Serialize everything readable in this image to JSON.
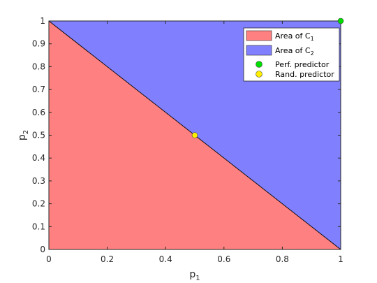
{
  "chart_data": {
    "type": "area",
    "xlabel": "p",
    "xlabel_sub": "1",
    "ylabel": "p",
    "ylabel_sub": "2",
    "xlim": [
      0,
      1
    ],
    "ylim": [
      0,
      1
    ],
    "x_ticks": [
      0,
      0.2,
      0.4,
      0.6,
      0.8,
      1
    ],
    "x_tick_labels": [
      "0",
      "0.2",
      "0.4",
      "0.6",
      "0.8",
      "1"
    ],
    "y_ticks": [
      0,
      0.1,
      0.2,
      0.3,
      0.4,
      0.5,
      0.6,
      0.7,
      0.8,
      0.9,
      1
    ],
    "y_tick_labels": [
      "0",
      "0.1",
      "0.2",
      "0.3",
      "0.4",
      "0.5",
      "0.6",
      "0.7",
      "0.8",
      "0.9",
      "1"
    ],
    "grid": false,
    "legend_position": "top-right",
    "regions": [
      {
        "legend_label": "Area of C",
        "legend_sub": "1",
        "color": "#ff8080",
        "polygon": [
          [
            0,
            0
          ],
          [
            1,
            0
          ],
          [
            0,
            1
          ]
        ]
      },
      {
        "legend_label": "Area of C",
        "legend_sub": "2",
        "color": "#8080ff",
        "polygon": [
          [
            0,
            1
          ],
          [
            1,
            0
          ],
          [
            1,
            1
          ]
        ]
      }
    ],
    "boundary_line": {
      "x": [
        0,
        1
      ],
      "y": [
        1,
        0
      ],
      "color": "#000000"
    },
    "points": [
      {
        "name": "Perf. predictor",
        "x": 1,
        "y": 1,
        "color": "#00dd00"
      },
      {
        "name": "Rand. predictor",
        "x": 0.5,
        "y": 0.5,
        "color": "#ffee00"
      }
    ]
  }
}
